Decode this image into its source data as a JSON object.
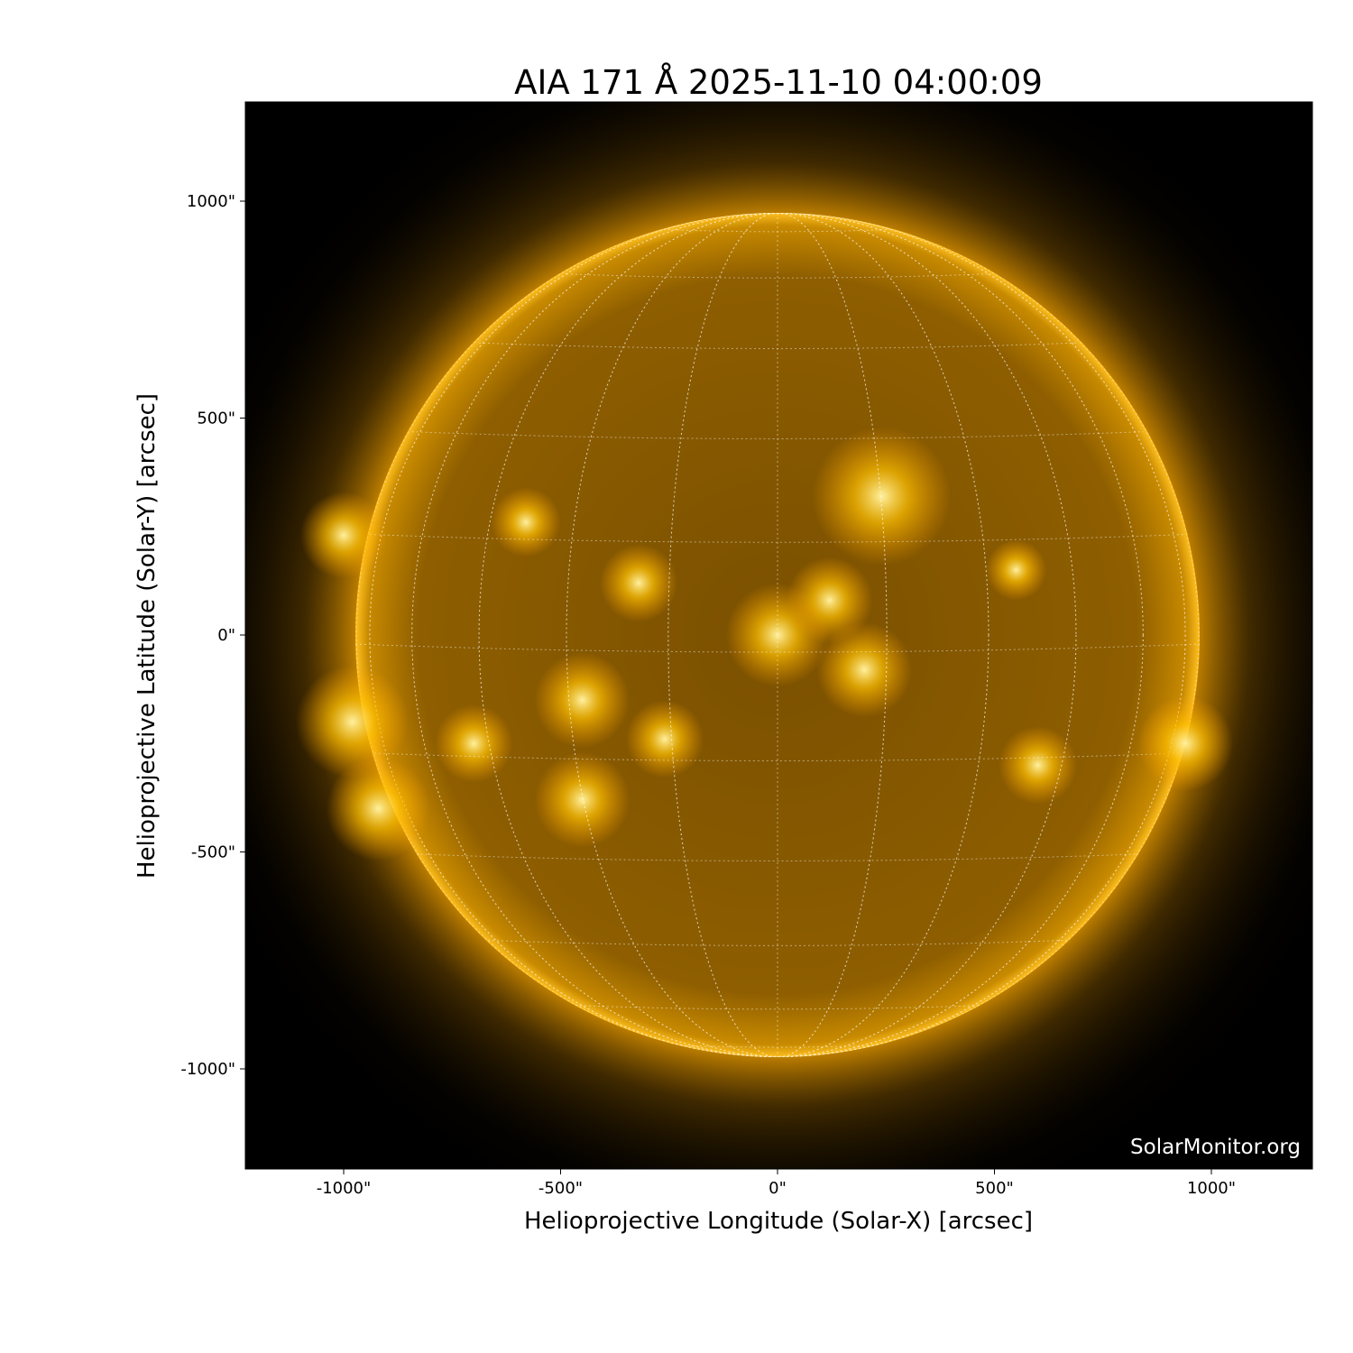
{
  "chart_data": {
    "type": "image",
    "title": "AIA 171 Å 2025-11-10 04:00:09",
    "xlabel": "Helioprojective Longitude (Solar-X) [arcsec]",
    "ylabel": "Helioprojective Latitude (Solar-Y) [arcsec]",
    "xlim": [
      -1227,
      1233
    ],
    "ylim": [
      -1230,
      1230
    ],
    "xticks": [
      -1000,
      -500,
      0,
      500,
      1000
    ],
    "yticks": [
      -1000,
      -500,
      0,
      500,
      1000
    ],
    "xtick_labels": [
      "-1000\"",
      "-500\"",
      "0\"",
      "500\"",
      "1000\""
    ],
    "ytick_labels": [
      "-1000\"",
      "-500\"",
      "0\"",
      "500\"",
      "1000\""
    ],
    "solar_radius_arcsec": 973,
    "grid": "heliographic lat/lon grid, dotted white",
    "colormap": "sdoaia171",
    "colors": {
      "background": "#000000",
      "disk": "#8a5a00",
      "corona": "#f0a800",
      "bright": "#ffe070"
    },
    "watermark": "SolarMonitor.org"
  }
}
